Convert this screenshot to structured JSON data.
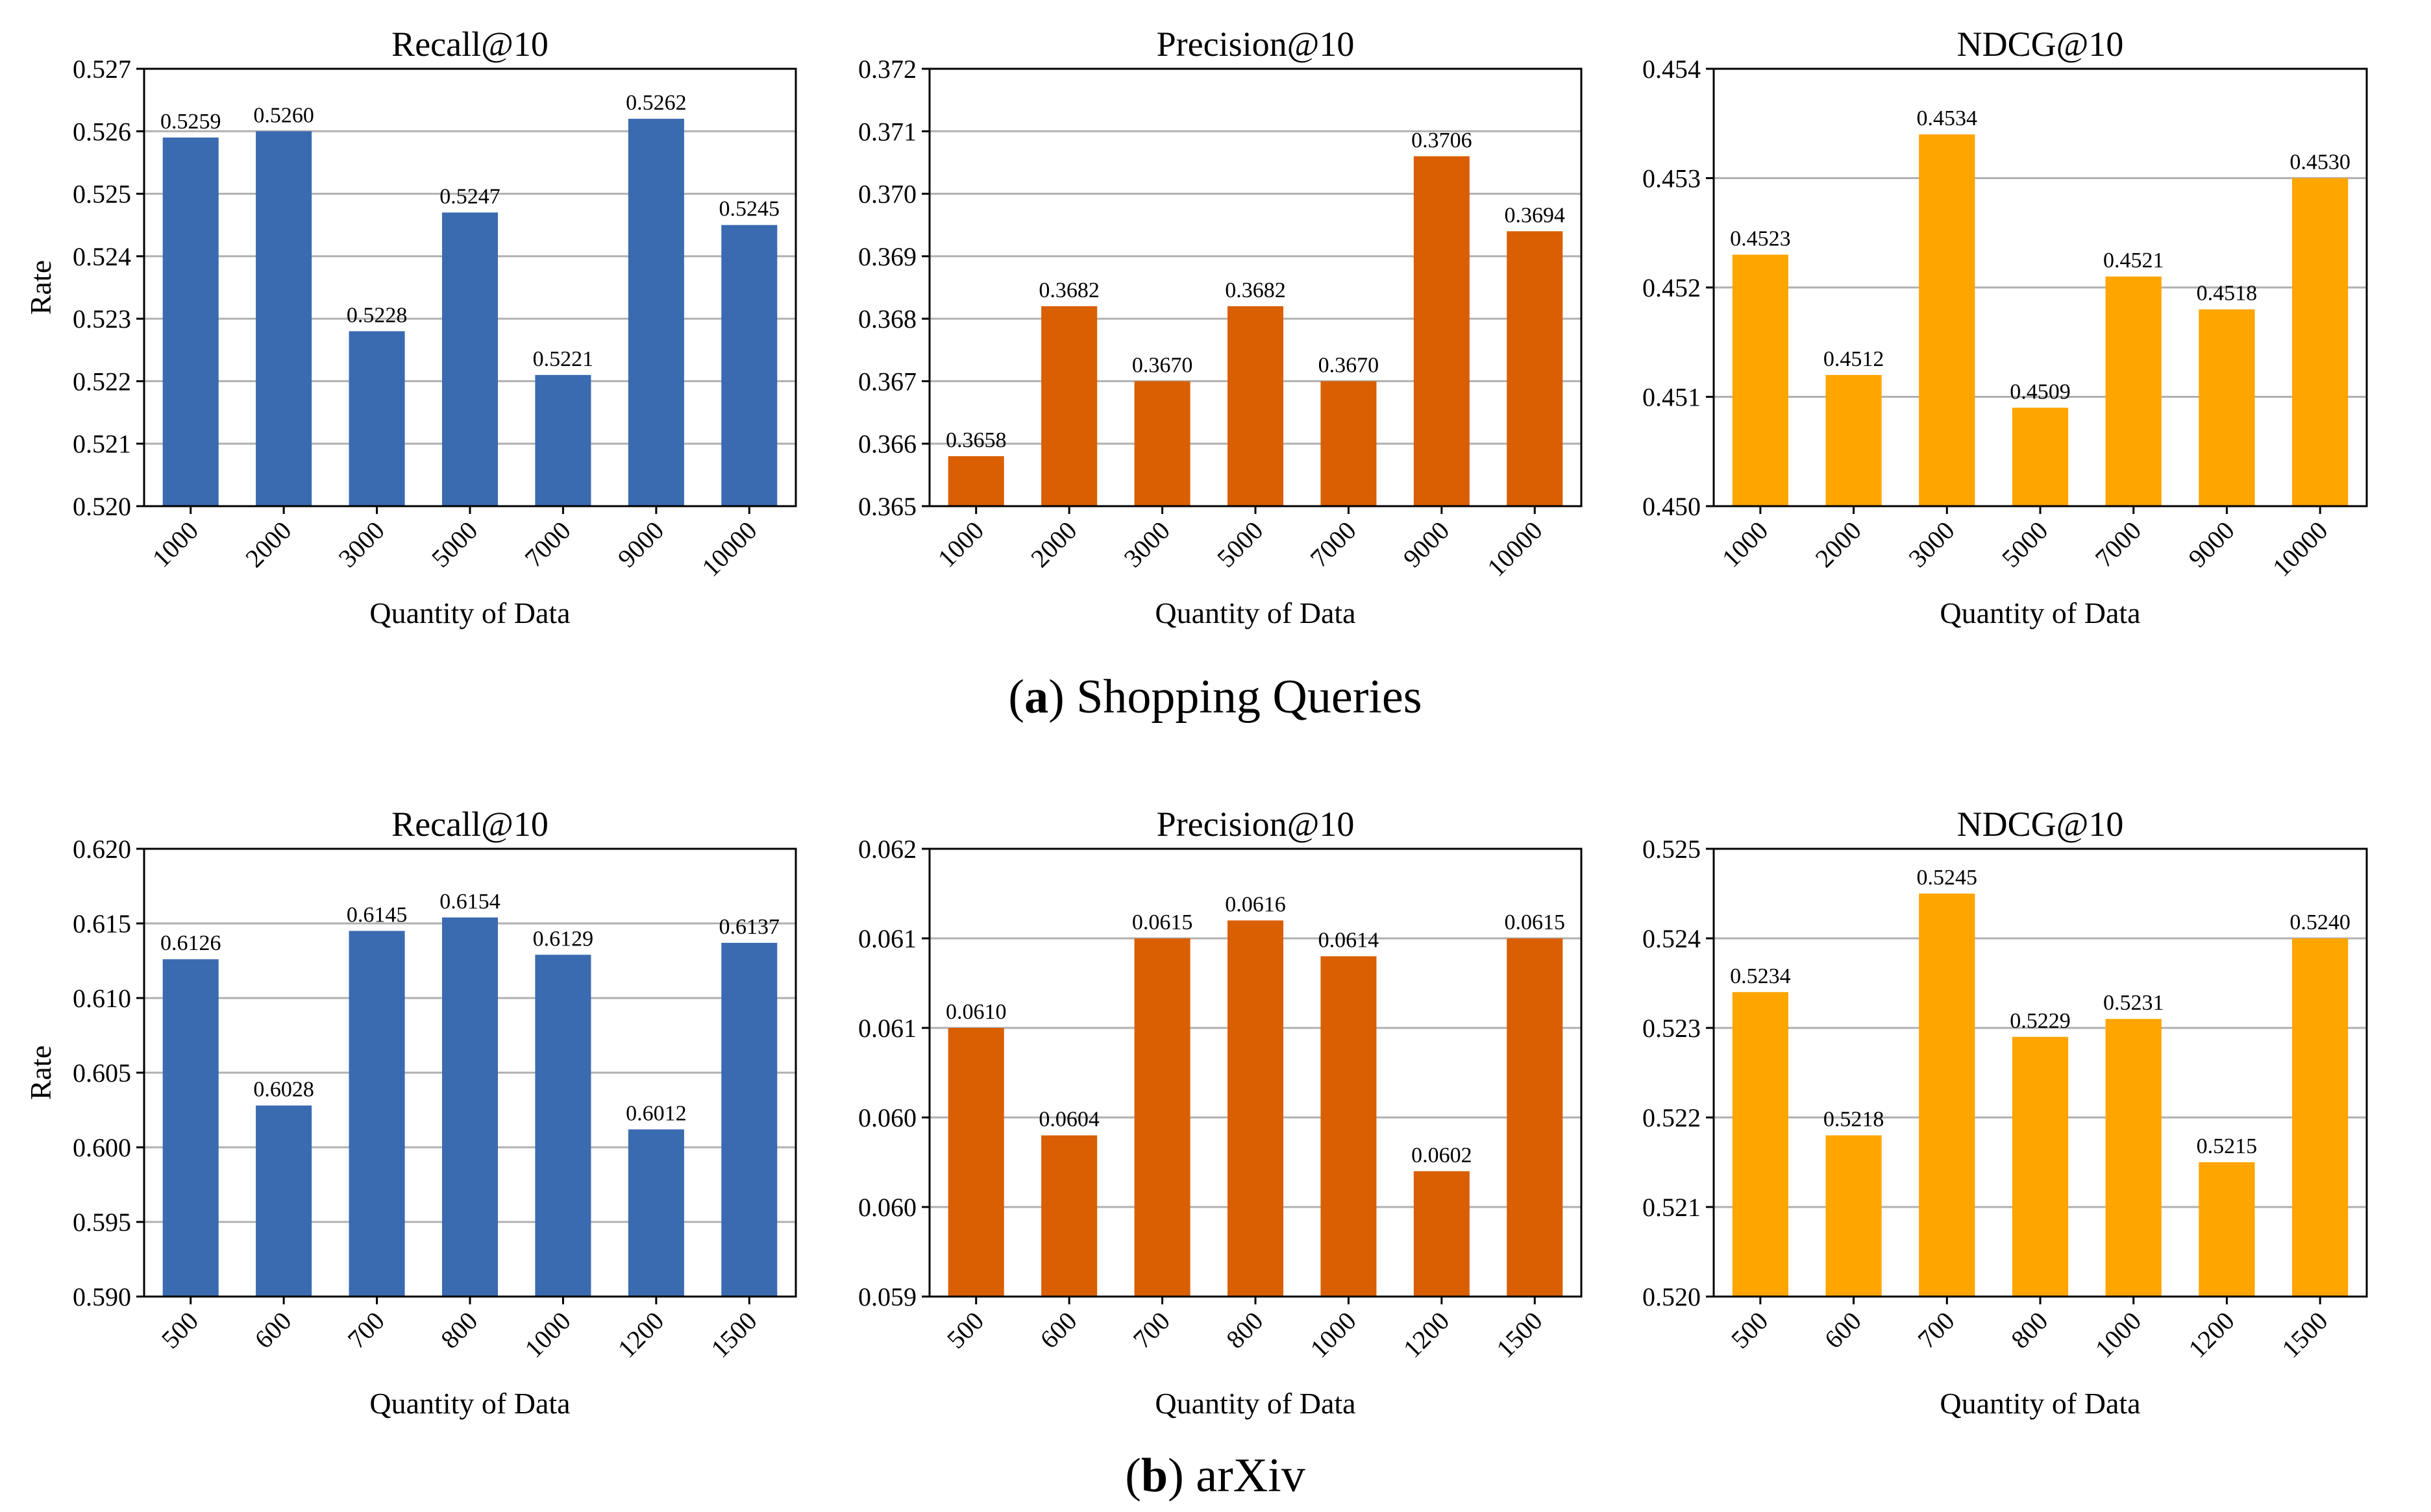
{
  "chart_data": [
    {
      "type": "bar",
      "row": "a",
      "title": "Recall@10",
      "xlabel": "Quantity of Data",
      "ylabel": "Rate",
      "categories": [
        "1000",
        "2000",
        "3000",
        "5000",
        "7000",
        "9000",
        "10000"
      ],
      "values": [
        0.5259,
        0.526,
        0.5228,
        0.5247,
        0.5221,
        0.5262,
        0.5245
      ],
      "value_labels": [
        "0.5259",
        "0.5260",
        "0.5228",
        "0.5247",
        "0.5221",
        "0.5262",
        "0.5245"
      ],
      "ylim": [
        0.52,
        0.527
      ],
      "yticks": [
        0.52,
        0.521,
        0.522,
        0.523,
        0.524,
        0.525,
        0.526,
        0.527
      ],
      "ytick_labels": [
        "0.520",
        "0.521",
        "0.522",
        "0.523",
        "0.524",
        "0.525",
        "0.526",
        "0.527"
      ],
      "color": "#3a6bb0",
      "grid": true
    },
    {
      "type": "bar",
      "row": "a",
      "title": "Precision@10",
      "xlabel": "Quantity of Data",
      "ylabel": "",
      "categories": [
        "1000",
        "2000",
        "3000",
        "5000",
        "7000",
        "9000",
        "10000"
      ],
      "values": [
        0.3658,
        0.3682,
        0.367,
        0.3682,
        0.367,
        0.3706,
        0.3694
      ],
      "value_labels": [
        "0.3658",
        "0.3682",
        "0.3670",
        "0.3682",
        "0.3670",
        "0.3706",
        "0.3694"
      ],
      "ylim": [
        0.365,
        0.372
      ],
      "yticks": [
        0.365,
        0.366,
        0.367,
        0.368,
        0.369,
        0.37,
        0.371,
        0.372
      ],
      "ytick_labels": [
        "0.365",
        "0.366",
        "0.367",
        "0.368",
        "0.369",
        "0.370",
        "0.371",
        "0.372"
      ],
      "color": "#d95f02",
      "grid": true
    },
    {
      "type": "bar",
      "row": "a",
      "title": "NDCG@10",
      "xlabel": "Quantity of Data",
      "ylabel": "",
      "categories": [
        "1000",
        "2000",
        "3000",
        "5000",
        "7000",
        "9000",
        "10000"
      ],
      "values": [
        0.4523,
        0.4512,
        0.4534,
        0.4509,
        0.4521,
        0.4518,
        0.453
      ],
      "value_labels": [
        "0.4523",
        "0.4512",
        "0.4534",
        "0.4509",
        "0.4521",
        "0.4518",
        "0.4530"
      ],
      "ylim": [
        0.45,
        0.454
      ],
      "yticks": [
        0.45,
        0.451,
        0.452,
        0.453,
        0.454
      ],
      "ytick_labels": [
        "0.450",
        "0.451",
        "0.452",
        "0.453",
        "0.454"
      ],
      "color": "#ffa500",
      "grid": true
    },
    {
      "type": "bar",
      "row": "b",
      "title": "Recall@10",
      "xlabel": "Quantity of Data",
      "ylabel": "Rate",
      "categories": [
        "500",
        "600",
        "700",
        "800",
        "1000",
        "1200",
        "1500"
      ],
      "values": [
        0.6126,
        0.6028,
        0.6145,
        0.6154,
        0.6129,
        0.6012,
        0.6137
      ],
      "value_labels": [
        "0.6126",
        "0.6028",
        "0.6145",
        "0.6154",
        "0.6129",
        "0.6012",
        "0.6137"
      ],
      "ylim": [
        0.59,
        0.62
      ],
      "yticks": [
        0.59,
        0.595,
        0.6,
        0.605,
        0.61,
        0.615,
        0.62
      ],
      "ytick_labels": [
        "0.590",
        "0.595",
        "0.600",
        "0.605",
        "0.610",
        "0.615",
        "0.620"
      ],
      "color": "#3a6bb0",
      "grid": true
    },
    {
      "type": "bar",
      "row": "b",
      "title": "Precision@10",
      "xlabel": "Quantity of Data",
      "ylabel": "",
      "categories": [
        "500",
        "600",
        "700",
        "800",
        "1000",
        "1200",
        "1500"
      ],
      "values": [
        0.061,
        0.0604,
        0.0615,
        0.0616,
        0.0614,
        0.0602,
        0.0615
      ],
      "value_labels": [
        "0.0610",
        "0.0604",
        "0.0615",
        "0.0616",
        "0.0614",
        "0.0602",
        "0.0615"
      ],
      "ylim": [
        0.0595,
        0.062
      ],
      "yticks": [
        0.0595,
        0.06,
        0.0605,
        0.061,
        0.0615,
        0.062
      ],
      "ytick_labels": [
        "0.059",
        "0.060",
        "0.060",
        "0.061",
        "0.061",
        "0.062"
      ],
      "color": "#d95f02",
      "grid": true
    },
    {
      "type": "bar",
      "row": "b",
      "title": "NDCG@10",
      "xlabel": "Quantity of Data",
      "ylabel": "",
      "categories": [
        "500",
        "600",
        "700",
        "800",
        "1000",
        "1200",
        "1500"
      ],
      "values": [
        0.5234,
        0.5218,
        0.5245,
        0.5229,
        0.5231,
        0.5215,
        0.524
      ],
      "value_labels": [
        "0.5234",
        "0.5218",
        "0.5245",
        "0.5229",
        "0.5231",
        "0.5215",
        "0.5240"
      ],
      "ylim": [
        0.52,
        0.525
      ],
      "yticks": [
        0.52,
        0.521,
        0.522,
        0.523,
        0.524,
        0.525
      ],
      "ytick_labels": [
        "0.520",
        "0.521",
        "0.522",
        "0.523",
        "0.524",
        "0.525"
      ],
      "color": "#ffa500",
      "grid": true
    }
  ],
  "captions": {
    "a": {
      "letter": "a",
      "text": "Shopping Queries"
    },
    "b": {
      "letter": "b",
      "text": "arXiv"
    }
  },
  "colors": {
    "grid": "#b0b0b0",
    "axis": "#000000"
  }
}
